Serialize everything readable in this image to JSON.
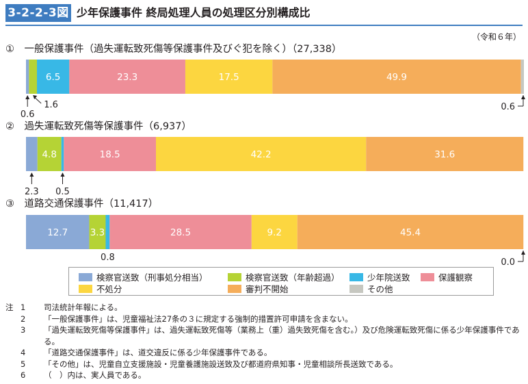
{
  "figure": {
    "number": "3-2-2-3図",
    "title": "少年保護事件 終局処理人員の処理区分別構成比",
    "year_note": "（令和６年）"
  },
  "colors": {
    "prosecutor_punishment": "#8aa9d6",
    "prosecutor_age": "#b5d335",
    "training_school": "#38b8e6",
    "probation": "#ee8e98",
    "no_disposition": "#fcd640",
    "no_hearing": "#f5ad5a",
    "other": "#c6c7c0"
  },
  "chart_data": {
    "type": "bar",
    "orientation": "horizontal",
    "stacked": true,
    "unit": "%",
    "xlim": [
      0,
      100
    ],
    "grid": false,
    "legend_position": "bottom",
    "categories": [
      "① 一般保護事件（過失運転致死傷等保護事件及びぐ犯を除く）（27,338）",
      "② 過失運転致死傷等保護事件（6,937）",
      "③ 道路交通保護事件（11,417）"
    ],
    "series": [
      {
        "name": "検察官送致（刑事処分相当）",
        "color": "#8aa9d6",
        "values": [
          0.6,
          2.3,
          12.7
        ]
      },
      {
        "name": "検察官送致（年齢超過）",
        "color": "#b5d335",
        "values": [
          1.6,
          4.8,
          3.3
        ]
      },
      {
        "name": "少年院送致",
        "color": "#38b8e6",
        "values": [
          6.5,
          0.5,
          0.8
        ]
      },
      {
        "name": "保護観察",
        "color": "#ee8e98",
        "values": [
          23.3,
          18.5,
          28.5
        ]
      },
      {
        "name": "不処分",
        "color": "#fcd640",
        "values": [
          17.5,
          42.2,
          9.2
        ]
      },
      {
        "name": "審判不開始",
        "color": "#f5ad5a",
        "values": [
          49.9,
          31.6,
          45.4
        ]
      },
      {
        "name": "その他",
        "color": "#c6c7c0",
        "values": [
          0.6,
          0.0,
          0.0
        ]
      }
    ],
    "rows": [
      {
        "label": "①　一般保護事件（過失運転致死傷等保護事件及びぐ犯を除く）（27,338）",
        "values": [
          "0.6",
          "1.6",
          "6.5",
          "23.3",
          "17.5",
          "49.9",
          "0.6"
        ],
        "inside_labels": [
          "",
          "",
          "6.5",
          "23.3",
          "17.5",
          "49.9",
          ""
        ],
        "callouts": [
          {
            "segment": 0,
            "text": "0.6",
            "side": "below-left"
          },
          {
            "segment": 1,
            "text": "1.6",
            "side": "below-diagonal"
          },
          {
            "segment": 6,
            "text": "0.6",
            "side": "below-right"
          }
        ]
      },
      {
        "label": "②　過失運転致死傷等保護事件（6,937）",
        "values": [
          "2.3",
          "4.8",
          "0.5",
          "18.5",
          "42.2",
          "31.6",
          "0.0"
        ],
        "inside_labels": [
          "",
          "4.8",
          "",
          "18.5",
          "42.2",
          "31.6",
          ""
        ],
        "callouts": [
          {
            "segment": 0,
            "text": "2.3",
            "side": "below-arrow"
          },
          {
            "segment": 2,
            "text": "0.5",
            "side": "below-arrow"
          }
        ]
      },
      {
        "label": "③　道路交通保護事件（11,417）",
        "values": [
          "12.7",
          "3.3",
          "0.8",
          "28.5",
          "9.2",
          "45.4",
          "0.0"
        ],
        "inside_labels": [
          "12.7",
          "3.3",
          "",
          "28.5",
          "9.2",
          "45.4",
          ""
        ],
        "callouts": [
          {
            "segment": 2,
            "text": "0.8",
            "side": "below-plain"
          },
          {
            "segment": 6,
            "text": "0.0",
            "side": "below-right"
          }
        ]
      }
    ]
  },
  "legend": [
    {
      "label": "検察官送致（刑事処分相当）",
      "color": "#8aa9d6"
    },
    {
      "label": "検察官送致（年齢超過）",
      "color": "#b5d335"
    },
    {
      "label": "少年院送致",
      "color": "#38b8e6"
    },
    {
      "label": "保護観察",
      "color": "#ee8e98"
    },
    {
      "label": "不処分",
      "color": "#fcd640"
    },
    {
      "label": "審判不開始",
      "color": "#f5ad5a"
    },
    {
      "label": "その他",
      "color": "#c6c7c0"
    }
  ],
  "notes": {
    "head": "注",
    "items": [
      {
        "num": "1",
        "text": "司法統計年報による。"
      },
      {
        "num": "2",
        "text": "「一般保護事件」は、児童福祉法27条の３に規定する強制的措置許可申請を含まない。"
      },
      {
        "num": "3",
        "text": "「過失運転致死傷等保護事件」は、過失運転致死傷等（業務上（重）過失致死傷を含む。）及び危険運転致死傷に係る少年保護事件である。"
      },
      {
        "num": "4",
        "text": "「道路交通保護事件」は、道交違反に係る少年保護事件である。"
      },
      {
        "num": "5",
        "text": "「その他」は、児童自立支援施設・児童養護施設送致及び都道府県知事・児童相談所長送致である。"
      },
      {
        "num": "6",
        "text": "（　）内は、実人員である。"
      }
    ]
  }
}
